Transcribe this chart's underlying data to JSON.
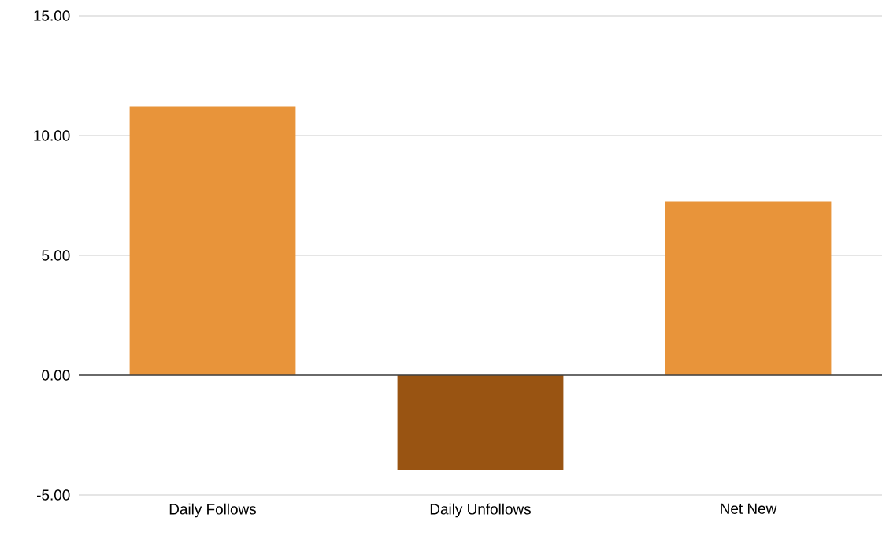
{
  "chart_data": {
    "type": "bar",
    "categories": [
      "Daily Follows",
      "Daily Unfollows",
      "Net New"
    ],
    "values": [
      11.2,
      -3.95,
      7.25
    ],
    "colors": [
      "#e8943a",
      "#995412",
      "#e8943a"
    ],
    "ylim": [
      -5,
      15
    ],
    "yticks": [
      {
        "value": -5,
        "label": "-5.00"
      },
      {
        "value": 0,
        "label": "0.00"
      },
      {
        "value": 5,
        "label": "5.00"
      },
      {
        "value": 10,
        "label": "10.00"
      },
      {
        "value": 15,
        "label": "15.00"
      }
    ],
    "grid": "y"
  }
}
